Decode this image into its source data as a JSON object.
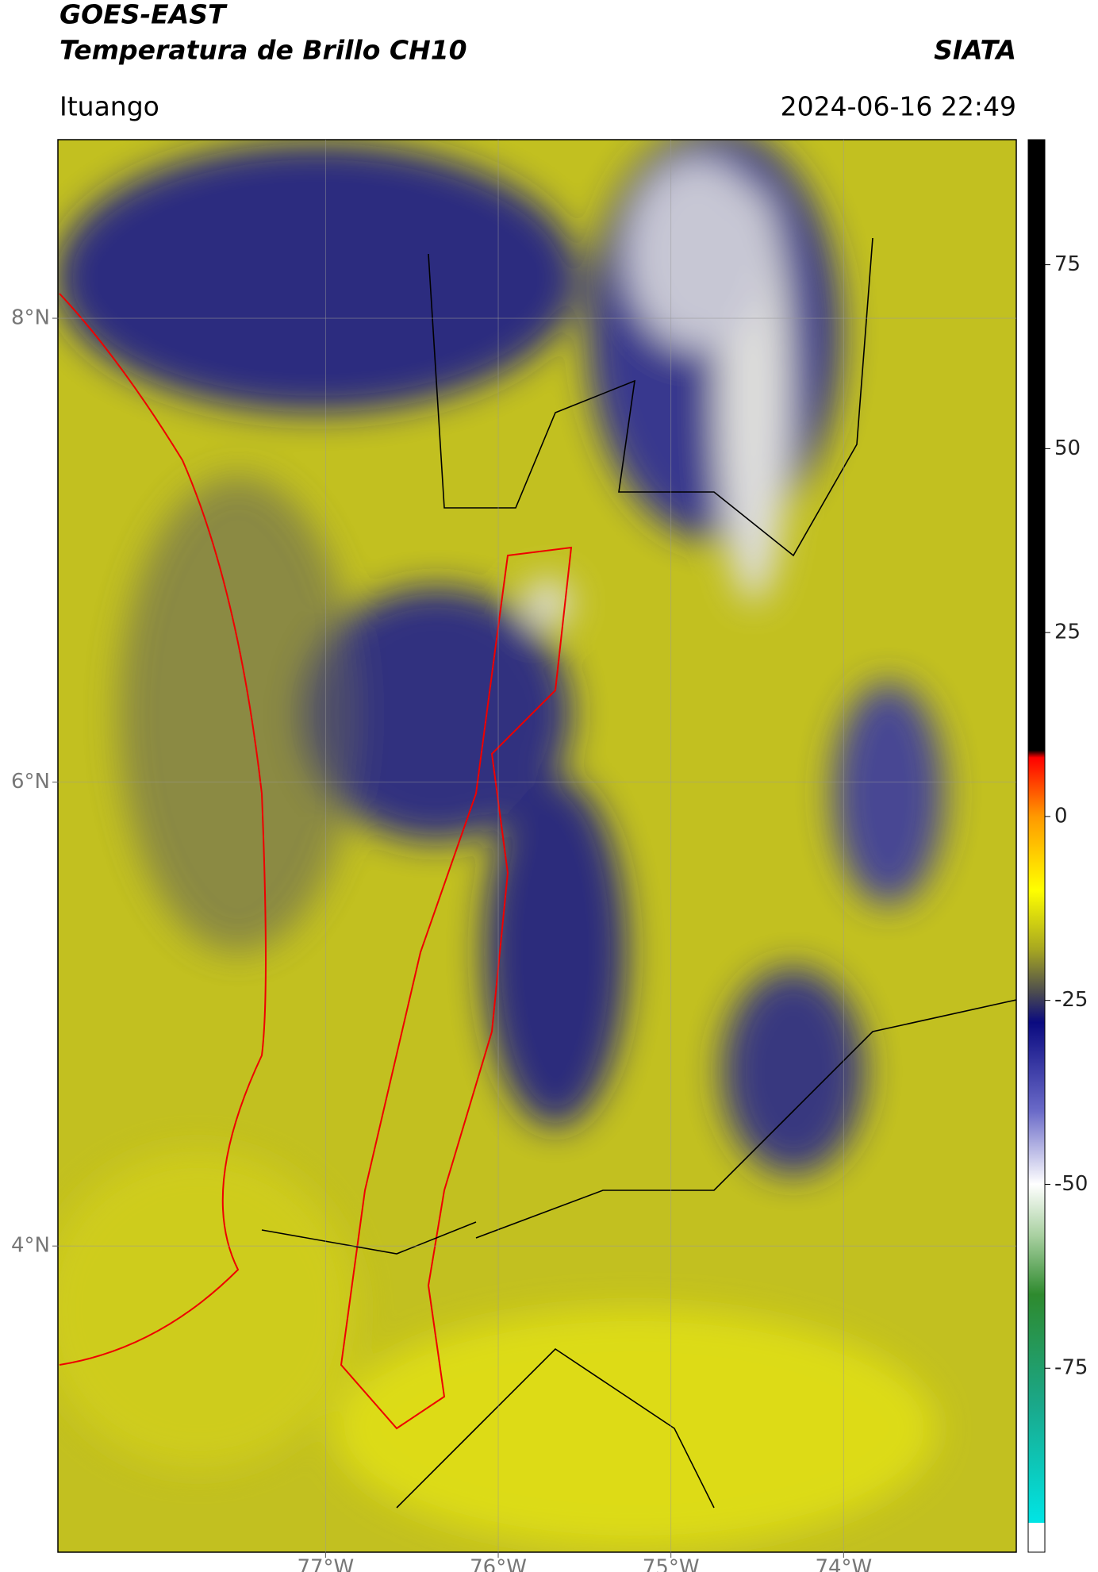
{
  "header": {
    "title": "GOES-EAST",
    "subtitle": "Temperatura de Brillo CH10",
    "agency": "SIATA",
    "location": "Ituango",
    "datetime": "2024-06-16 22:49"
  },
  "map": {
    "xlim": [
      -78.55,
      -73.0
    ],
    "ylim": [
      2.68,
      8.77
    ],
    "xticks": [
      {
        "value": -77,
        "label": "77°W"
      },
      {
        "value": -76,
        "label": "76°W"
      },
      {
        "value": -75,
        "label": "75°W"
      },
      {
        "value": -74,
        "label": "74°W"
      }
    ],
    "yticks": [
      {
        "value": 8,
        "label": "8°N"
      },
      {
        "value": 6,
        "label": "6°N"
      },
      {
        "value": 4,
        "label": "4°N"
      }
    ],
    "grid": true
  },
  "colorbar": {
    "clim": [
      -100,
      92
    ],
    "ticks": [
      75,
      50,
      25,
      0,
      -25,
      -50,
      -75
    ],
    "colormap": [
      [
        -100,
        "#ffffff"
      ],
      [
        -96,
        "#ffffff"
      ],
      [
        -96,
        "#00e5e5"
      ],
      [
        -80,
        "#1aa88a"
      ],
      [
        -65,
        "#2e8a2e"
      ],
      [
        -57,
        "#a8d0a0"
      ],
      [
        -50,
        "#ffffff"
      ],
      [
        -40,
        "#6a6ac8"
      ],
      [
        -28,
        "#0a0a80"
      ],
      [
        -24,
        "#4a4a50"
      ],
      [
        -18,
        "#a8a820"
      ],
      [
        -10,
        "#ffff00"
      ],
      [
        0,
        "#ff9900"
      ],
      [
        8,
        "#ff0000"
      ],
      [
        9,
        "#000000"
      ],
      [
        92,
        "#000000"
      ]
    ]
  }
}
